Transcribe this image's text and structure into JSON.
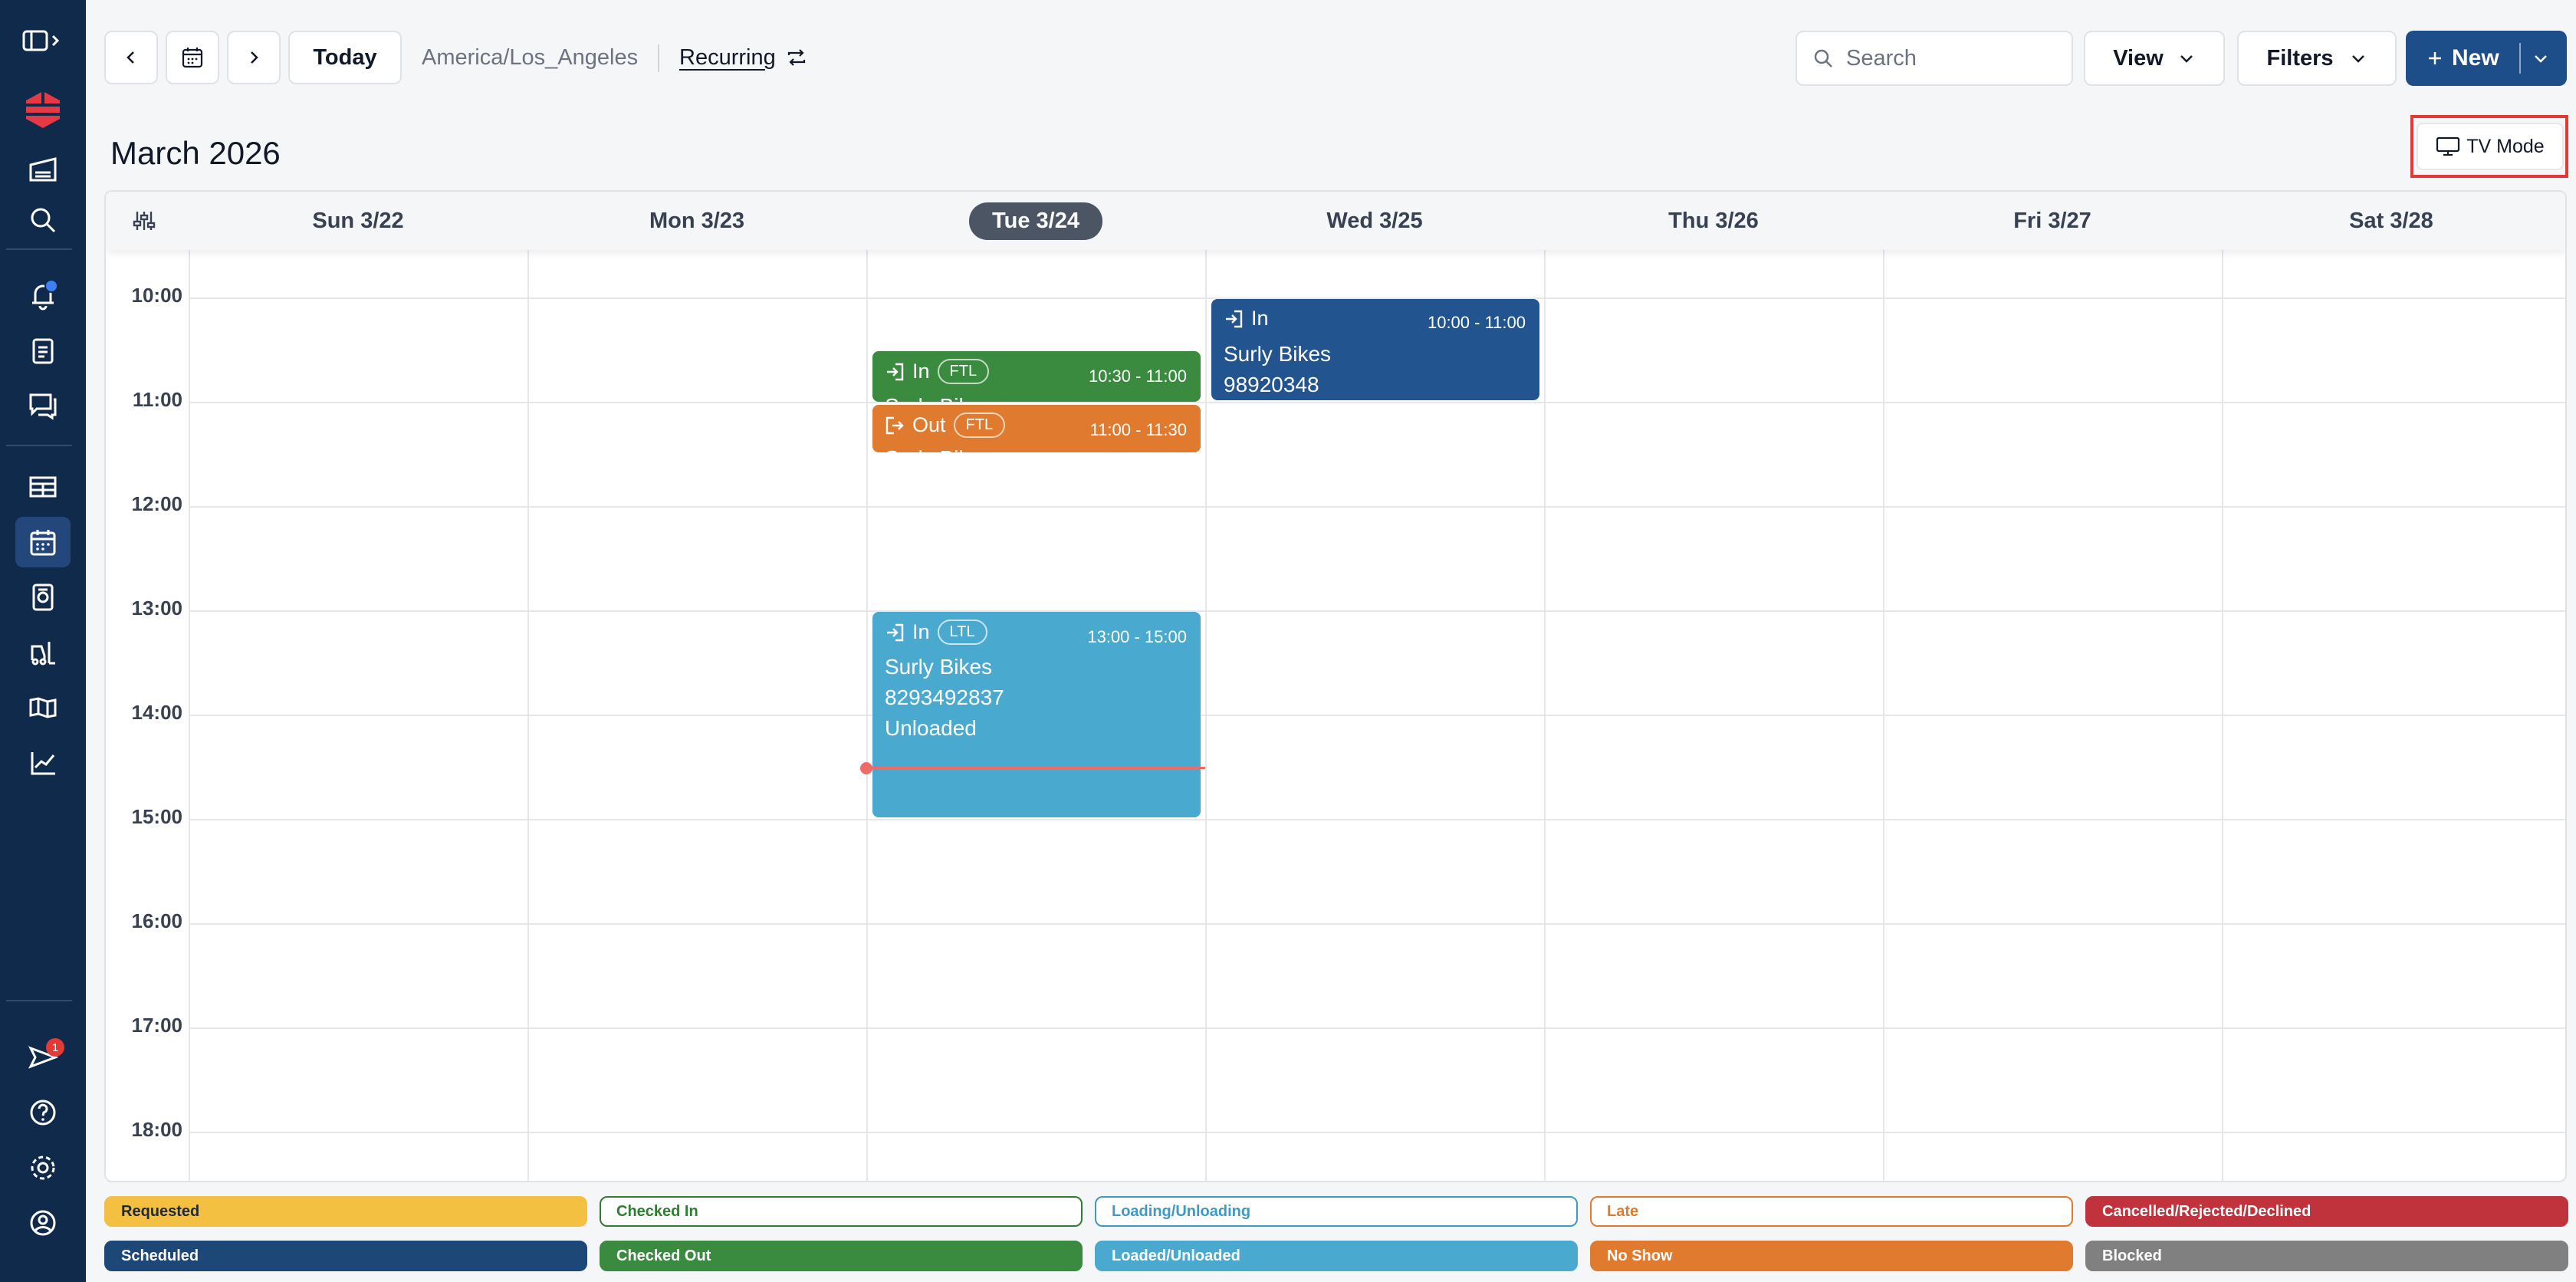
{
  "toolbar": {
    "today_label": "Today",
    "timezone": "America/Los_Angeles",
    "recurring_label": "Recurring",
    "search_placeholder": "Search",
    "view_label": "View",
    "filters_label": "Filters",
    "new_label": "New"
  },
  "calendar": {
    "month_title": "March 2026",
    "tv_mode_label": "TV Mode",
    "days": [
      "Sun 3/22",
      "Mon 3/23",
      "Tue 3/24",
      "Wed 3/25",
      "Thu 3/26",
      "Fri 3/27",
      "Sat 3/28"
    ],
    "today_index": 2,
    "hours": [
      "10:00",
      "11:00",
      "12:00",
      "13:00",
      "14:00",
      "15:00",
      "16:00",
      "17:00",
      "18:00"
    ],
    "events": [
      {
        "direction": "In",
        "type": "FTL",
        "time": "10:30 - 11:00",
        "line1": "Surly Bikes",
        "line2": "",
        "line3": "",
        "color": "#3a8a3f"
      },
      {
        "direction": "Out",
        "type": "FTL",
        "time": "11:00 - 11:30",
        "line1": "Surly Bikes",
        "line2": "",
        "line3": "",
        "color": "#e07a2e"
      },
      {
        "direction": "In",
        "type": "LTL",
        "time": "13:00 - 15:00",
        "line1": "Surly Bikes",
        "line2": "8293492837",
        "line3": "Unloaded",
        "color": "#4aa9cf"
      },
      {
        "direction": "In",
        "type": "",
        "time": "10:00 - 11:00",
        "line1": "Surly Bikes",
        "line2": "98920348",
        "line3": "",
        "color": "#22558f"
      }
    ]
  },
  "legend": [
    {
      "label": "Requested",
      "style": "filled",
      "bg": "#f4c042",
      "fg": "#1f2937",
      "border": "#f4c042"
    },
    {
      "label": "Checked In",
      "style": "outline",
      "bg": "#ffffff",
      "fg": "#2f7d32",
      "border": "#2f7d32"
    },
    {
      "label": "Loading/Unloading",
      "style": "outline",
      "bg": "#ffffff",
      "fg": "#3d9ac2",
      "border": "#3d9ac2"
    },
    {
      "label": "Late",
      "style": "outline",
      "bg": "#ffffff",
      "fg": "#e07a2e",
      "border": "#e07a2e"
    },
    {
      "label": "Cancelled/Rejected/Declined",
      "style": "filled",
      "bg": "#c0333c",
      "fg": "#ffffff",
      "border": "#c0333c"
    },
    {
      "label": "Scheduled",
      "style": "filled",
      "bg": "#1d4777",
      "fg": "#ffffff",
      "border": "#1d4777"
    },
    {
      "label": "Checked Out",
      "style": "filled",
      "bg": "#3a8a3f",
      "fg": "#ffffff",
      "border": "#3a8a3f"
    },
    {
      "label": "Loaded/Unloaded",
      "style": "filled",
      "bg": "#4aa9cf",
      "fg": "#ffffff",
      "border": "#4aa9cf"
    },
    {
      "label": "No Show",
      "style": "filled",
      "bg": "#e07a2e",
      "fg": "#ffffff",
      "border": "#e07a2e"
    },
    {
      "label": "Blocked",
      "style": "filled",
      "bg": "#808080",
      "fg": "#ffffff",
      "border": "#808080"
    }
  ],
  "sidebar": {
    "icons": [
      "sidebar-toggle-icon",
      "logo",
      "warehouse-icon",
      "search-icon",
      "bell-icon",
      "clipboard-icon",
      "chat-icon",
      "dock-icon",
      "calendar-icon",
      "yard-icon",
      "forklift-icon",
      "carrier-icon",
      "analytics-icon",
      "send-icon",
      "help-icon",
      "settings-icon",
      "profile-icon"
    ],
    "notification_badge": "1"
  }
}
